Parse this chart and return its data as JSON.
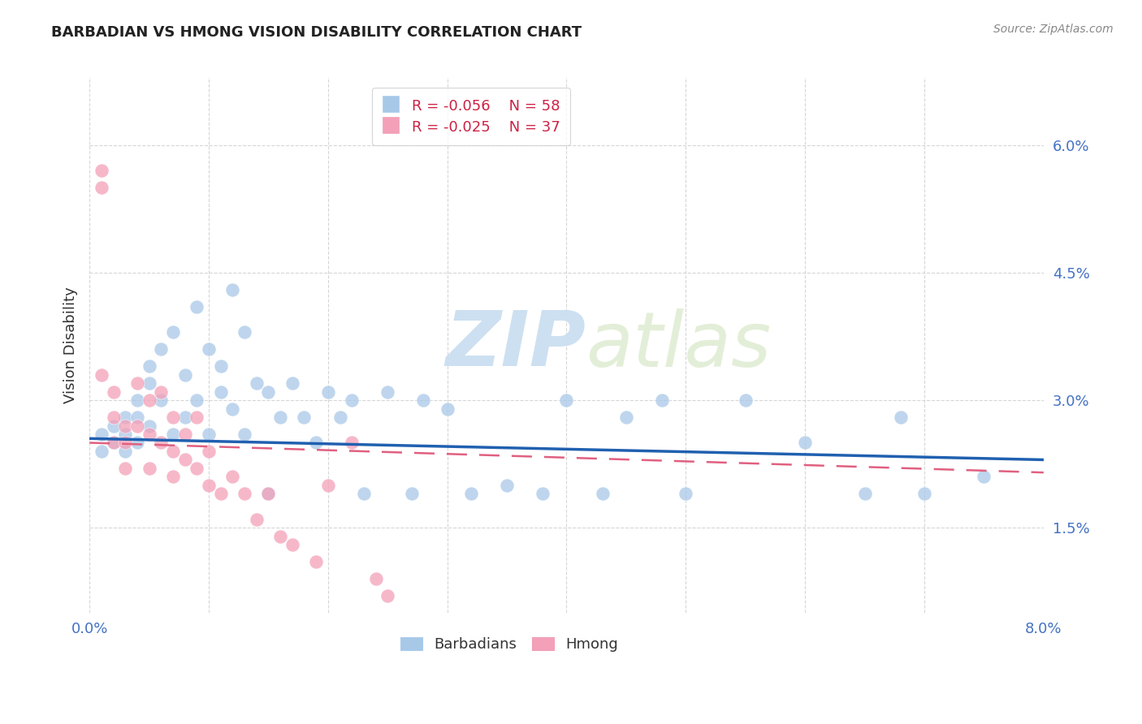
{
  "title": "BARBADIAN VS HMONG VISION DISABILITY CORRELATION CHART",
  "source": "Source: ZipAtlas.com",
  "ylabel": "Vision Disability",
  "ytick_labels": [
    "1.5%",
    "3.0%",
    "4.5%",
    "6.0%"
  ],
  "ytick_values": [
    0.015,
    0.03,
    0.045,
    0.06
  ],
  "xlim": [
    0.0,
    0.08
  ],
  "ylim": [
    0.005,
    0.068
  ],
  "legend_blue_R": "R = -0.056",
  "legend_blue_N": "N = 58",
  "legend_pink_R": "R = -0.025",
  "legend_pink_N": "N = 37",
  "blue_color": "#a8c8e8",
  "pink_color": "#f4a0b8",
  "blue_line_color": "#2060b0",
  "pink_line_color": "#e06080",
  "watermark_zip": "ZIP",
  "watermark_atlas": "atlas",
  "background_color": "#ffffff",
  "grid_color": "#cccccc",
  "barbadian_x": [
    0.001,
    0.001,
    0.002,
    0.002,
    0.003,
    0.003,
    0.003,
    0.004,
    0.004,
    0.004,
    0.005,
    0.005,
    0.005,
    0.006,
    0.006,
    0.007,
    0.007,
    0.008,
    0.008,
    0.009,
    0.009,
    0.01,
    0.01,
    0.011,
    0.011,
    0.012,
    0.012,
    0.013,
    0.013,
    0.014,
    0.015,
    0.015,
    0.016,
    0.017,
    0.018,
    0.019,
    0.02,
    0.021,
    0.022,
    0.023,
    0.025,
    0.027,
    0.028,
    0.03,
    0.032,
    0.035,
    0.038,
    0.04,
    0.043,
    0.045,
    0.048,
    0.05,
    0.055,
    0.06,
    0.065,
    0.068,
    0.07,
    0.075
  ],
  "barbadian_y": [
    0.026,
    0.024,
    0.027,
    0.025,
    0.028,
    0.026,
    0.024,
    0.03,
    0.028,
    0.025,
    0.034,
    0.032,
    0.027,
    0.036,
    0.03,
    0.038,
    0.026,
    0.033,
    0.028,
    0.041,
    0.03,
    0.036,
    0.026,
    0.034,
    0.031,
    0.043,
    0.029,
    0.038,
    0.026,
    0.032,
    0.031,
    0.019,
    0.028,
    0.032,
    0.028,
    0.025,
    0.031,
    0.028,
    0.03,
    0.019,
    0.031,
    0.019,
    0.03,
    0.029,
    0.019,
    0.02,
    0.019,
    0.03,
    0.019,
    0.028,
    0.03,
    0.019,
    0.03,
    0.025,
    0.019,
    0.028,
    0.019,
    0.021
  ],
  "hmong_x": [
    0.001,
    0.001,
    0.001,
    0.002,
    0.002,
    0.002,
    0.003,
    0.003,
    0.003,
    0.004,
    0.004,
    0.005,
    0.005,
    0.005,
    0.006,
    0.006,
    0.007,
    0.007,
    0.007,
    0.008,
    0.008,
    0.009,
    0.009,
    0.01,
    0.01,
    0.011,
    0.012,
    0.013,
    0.014,
    0.015,
    0.016,
    0.017,
    0.019,
    0.02,
    0.022,
    0.024,
    0.025
  ],
  "hmong_y": [
    0.055,
    0.057,
    0.033,
    0.031,
    0.028,
    0.025,
    0.027,
    0.025,
    0.022,
    0.032,
    0.027,
    0.03,
    0.026,
    0.022,
    0.031,
    0.025,
    0.028,
    0.024,
    0.021,
    0.026,
    0.023,
    0.028,
    0.022,
    0.024,
    0.02,
    0.019,
    0.021,
    0.019,
    0.016,
    0.019,
    0.014,
    0.013,
    0.011,
    0.02,
    0.025,
    0.009,
    0.007
  ]
}
